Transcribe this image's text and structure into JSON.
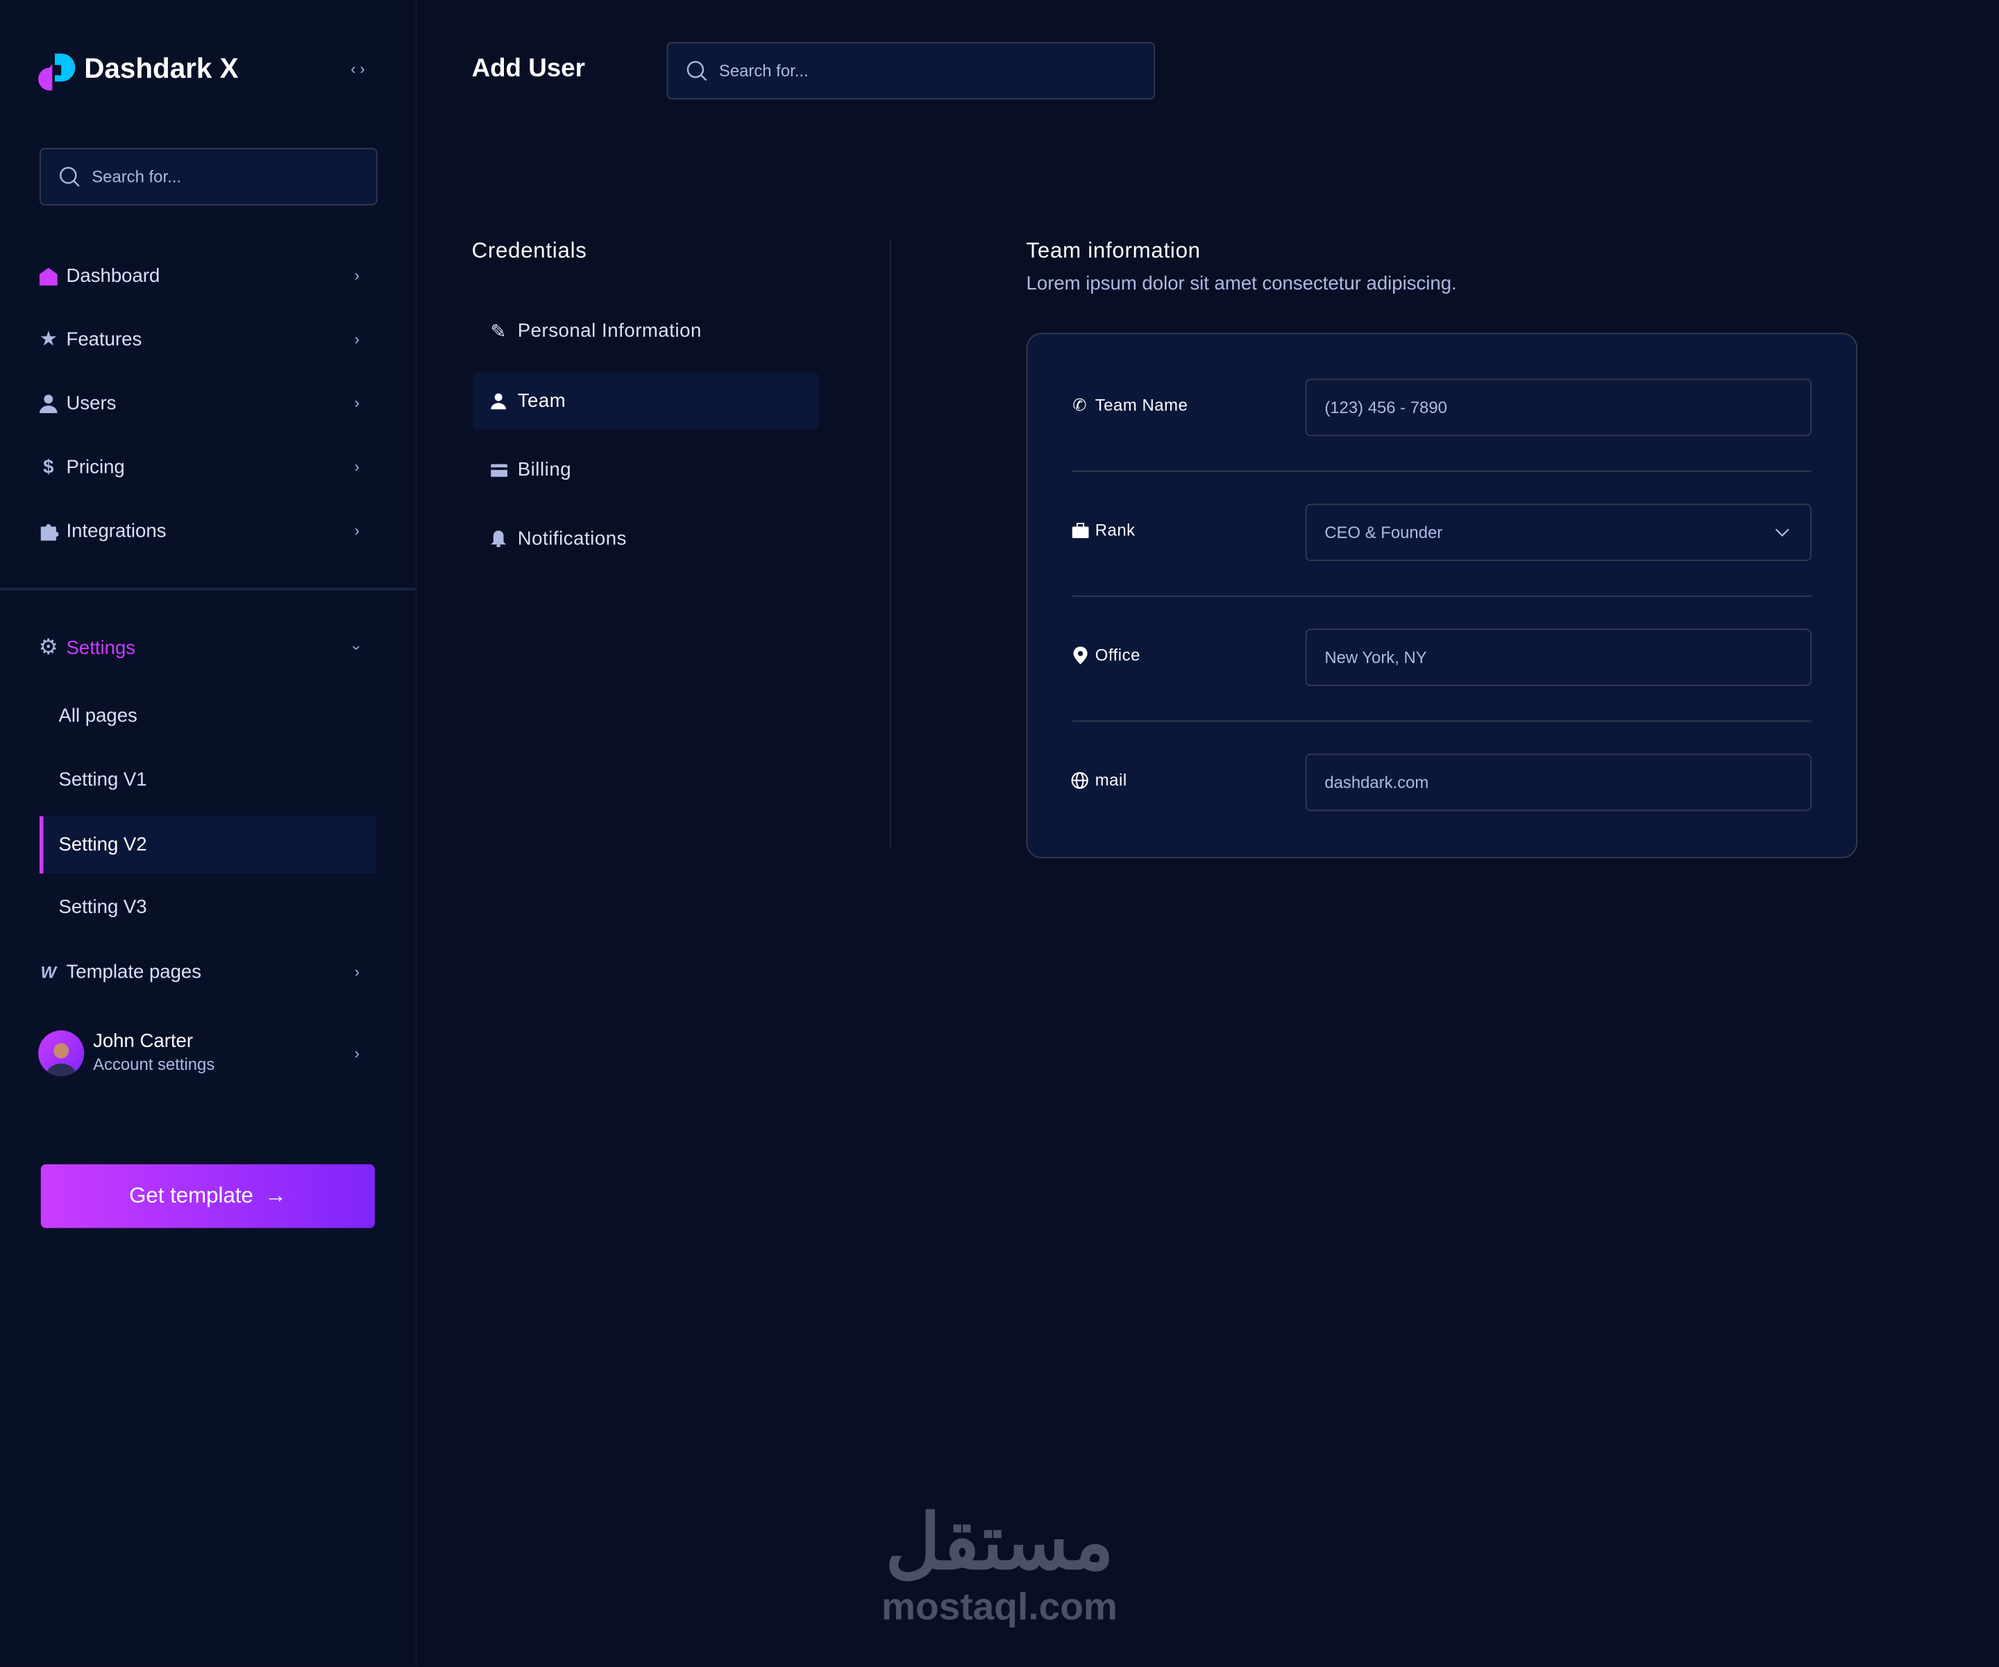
{
  "brand": {
    "name": "Dashdark X"
  },
  "sidebar": {
    "search_placeholder": "Search for...",
    "items": [
      {
        "label": "Dashboard",
        "icon": "home-icon"
      },
      {
        "label": "Features",
        "icon": "star-icon"
      },
      {
        "label": "Users",
        "icon": "user-icon"
      },
      {
        "label": "Pricing",
        "icon": "dollar-icon"
      },
      {
        "label": "Integrations",
        "icon": "puzzle-icon"
      }
    ],
    "settings": {
      "label": "Settings",
      "sub": [
        "All pages",
        "Setting V1",
        "Setting V2",
        "Setting V3"
      ],
      "active": "Setting V2"
    },
    "template_pages": "Template pages",
    "user": {
      "name": "John Carter",
      "subtitle": "Account settings"
    },
    "cta": "Get template"
  },
  "header": {
    "title": "Add User",
    "search_placeholder": "Search for..."
  },
  "credentials": {
    "title": "Credentials",
    "items": [
      {
        "label": "Personal Information",
        "icon": "pencil-icon"
      },
      {
        "label": "Team",
        "icon": "user-icon"
      },
      {
        "label": "Billing",
        "icon": "card-icon"
      },
      {
        "label": "Notifications",
        "icon": "bell-icon"
      }
    ],
    "active": "Team"
  },
  "team": {
    "title": "Team information",
    "description": "Lorem ipsum dolor sit amet consectetur adipiscing.",
    "fields": [
      {
        "label": "Team Name",
        "value": "(123) 456 - 7890",
        "icon": "phone-icon"
      },
      {
        "label": "Rank",
        "value": "CEO & Founder",
        "icon": "briefcase-icon",
        "type": "select"
      },
      {
        "label": "Office",
        "value": "New York, NY",
        "icon": "location-icon"
      },
      {
        "label": "mail",
        "value": "dashdark.com",
        "icon": "globe-icon"
      }
    ]
  },
  "watermark": {
    "arabic": "مستقل",
    "latin": "mostaql.com"
  },
  "colors": {
    "accent": "#cb3cff",
    "background": "#080f25",
    "card": "#0b1739",
    "border": "#343b4f",
    "logo_blue": "#00c2ff"
  }
}
